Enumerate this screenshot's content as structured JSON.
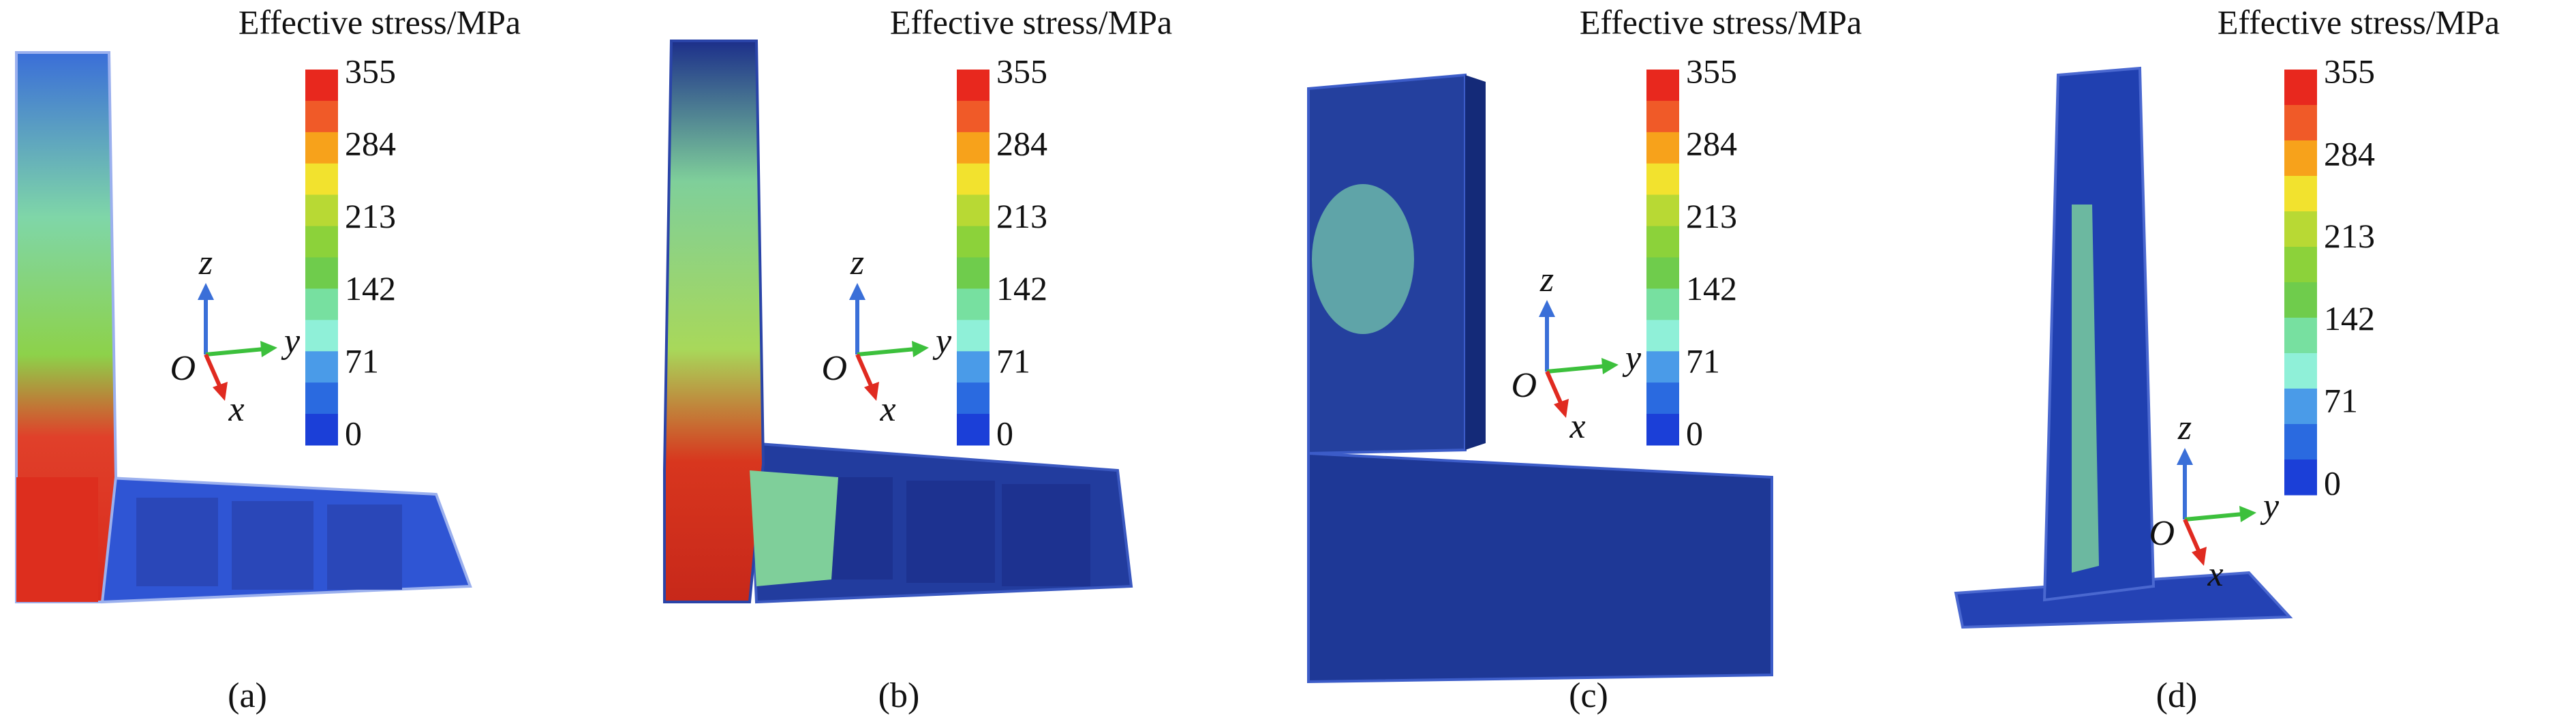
{
  "panels": [
    {
      "legend_title": "Effective stress/MPa",
      "ticks": [
        355,
        284,
        213,
        142,
        71,
        0
      ],
      "axes": {
        "z": "z",
        "y": "y",
        "origin": "O",
        "x": "x"
      },
      "caption": "(a)"
    },
    {
      "legend_title": "Effective stress/MPa",
      "ticks": [
        355,
        284,
        213,
        142,
        71,
        0
      ],
      "axes": {
        "z": "z",
        "y": "y",
        "origin": "O",
        "x": "x"
      },
      "caption": "(b)"
    },
    {
      "legend_title": "Effective stress/MPa",
      "ticks": [
        355,
        284,
        213,
        142,
        71,
        0
      ],
      "axes": {
        "z": "z",
        "y": "y",
        "origin": "O",
        "x": "x"
      },
      "caption": "(c)"
    },
    {
      "legend_title": "Effective stress/MPa",
      "ticks": [
        355,
        284,
        213,
        142,
        71,
        0
      ],
      "axes": {
        "z": "z",
        "y": "y",
        "origin": "O",
        "x": "x"
      },
      "caption": "(d)"
    }
  ]
}
